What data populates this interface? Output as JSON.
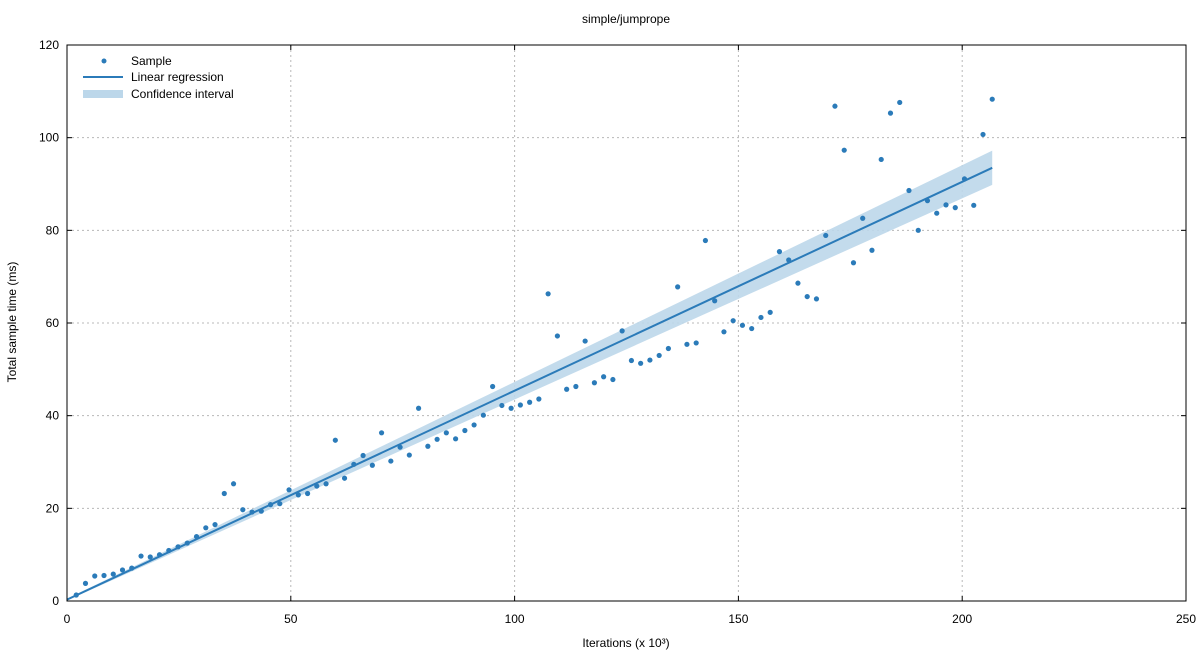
{
  "chart_data": {
    "type": "scatter",
    "title": "simple/jumprope",
    "xlabel": "Iterations (x 10³)",
    "ylabel": "Total sample time (ms)",
    "xlim": [
      0,
      250
    ],
    "ylim": [
      0,
      120
    ],
    "x_ticks": [
      0,
      50,
      100,
      150,
      200,
      250
    ],
    "y_ticks": [
      0,
      20,
      40,
      60,
      80,
      100,
      120
    ],
    "x_tick_labels": [
      "0",
      "50",
      "100",
      "150",
      "200",
      "250"
    ],
    "y_tick_labels": [
      "0",
      "20",
      "40",
      "60",
      "80",
      "100",
      "120"
    ],
    "grid": true,
    "legend_position": "top-left",
    "colors": {
      "sample": "#2b7bb9",
      "regression": "#2b7bb9",
      "confidence": "#bcd7ea"
    },
    "series": [
      {
        "name": "Sample",
        "kind": "points",
        "x": [
          2.07,
          4.13,
          6.2,
          8.27,
          10.34,
          12.4,
          14.47,
          16.54,
          18.6,
          20.67,
          22.74,
          24.81,
          26.87,
          28.94,
          31.01,
          33.07,
          35.14,
          37.21,
          39.28,
          41.34,
          43.41,
          45.48,
          47.54,
          49.61,
          51.68,
          53.75,
          55.81,
          57.88,
          59.95,
          62.01,
          64.08,
          66.15,
          68.22,
          70.28,
          72.35,
          74.42,
          76.48,
          78.55,
          80.62,
          82.69,
          84.75,
          86.82,
          88.89,
          90.95,
          93.02,
          95.09,
          97.16,
          99.22,
          101.29,
          103.36,
          105.42,
          107.49,
          109.56,
          111.63,
          113.69,
          115.76,
          117.83,
          119.89,
          121.96,
          124.03,
          126.1,
          128.16,
          130.23,
          132.3,
          134.36,
          136.43,
          138.5,
          140.57,
          142.63,
          144.7,
          146.77,
          148.83,
          150.9,
          152.97,
          155.04,
          157.1,
          159.17,
          161.24,
          163.3,
          165.37,
          167.44,
          169.51,
          171.57,
          173.64,
          175.71,
          177.77,
          179.84,
          181.91,
          183.98,
          186.04,
          188.11,
          190.18,
          192.24,
          194.31,
          196.38,
          198.45,
          200.51,
          202.58,
          204.65,
          206.71
        ],
        "y": [
          1.3,
          3.8,
          5.4,
          5.5,
          5.8,
          6.7,
          7.1,
          9.7,
          9.5,
          10.0,
          10.9,
          11.7,
          12.5,
          13.9,
          15.8,
          16.5,
          23.2,
          25.3,
          19.7,
          19.2,
          19.4,
          20.8,
          21.0,
          24.0,
          22.9,
          23.2,
          24.8,
          25.3,
          34.7,
          26.5,
          29.5,
          31.4,
          29.3,
          36.3,
          30.2,
          33.2,
          31.5,
          41.6,
          33.4,
          34.9,
          36.3,
          35.0,
          36.8,
          38.0,
          40.1,
          46.3,
          42.2,
          41.6,
          42.3,
          42.9,
          43.6,
          66.3,
          57.2,
          45.7,
          46.3,
          56.1,
          47.1,
          48.4,
          47.8,
          58.3,
          51.9,
          51.3,
          52.0,
          53.0,
          54.5,
          67.8,
          55.4,
          55.7,
          77.8,
          64.8,
          58.1,
          60.5,
          59.5,
          58.8,
          61.2,
          62.3,
          75.4,
          73.6,
          68.6,
          65.7,
          65.2,
          78.9,
          106.8,
          97.3,
          73.0,
          82.6,
          75.7,
          95.3,
          105.3,
          107.6,
          88.6,
          80.0,
          86.4,
          83.7,
          85.5,
          84.9,
          91.1,
          85.4,
          100.7,
          108.3
        ]
      },
      {
        "name": "Linear regression",
        "kind": "line",
        "x": [
          0,
          206.71
        ],
        "y": [
          0.3,
          93.5
        ]
      },
      {
        "name": "Confidence interval",
        "kind": "band",
        "x": [
          0,
          206.71
        ],
        "y_lower": [
          0.1,
          89.8
        ],
        "y_upper": [
          0.5,
          97.2
        ]
      }
    ]
  }
}
